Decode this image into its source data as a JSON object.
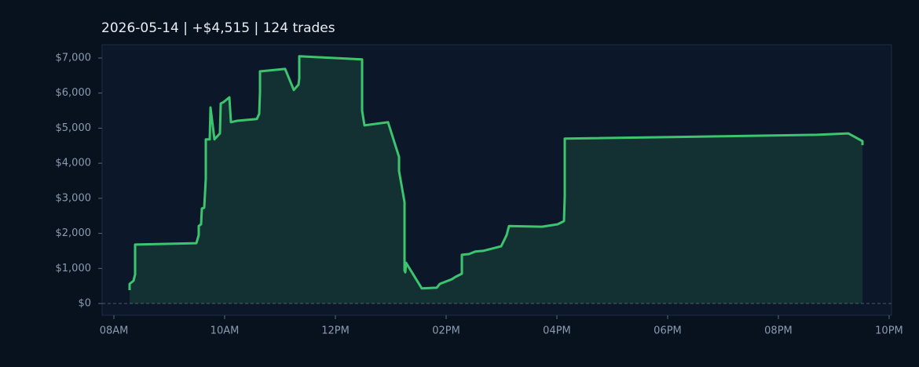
{
  "chart_data": {
    "type": "area-line",
    "title": "2026-05-14  |  +$4,515  |  124 trades",
    "color": "#3cc46e",
    "x": [
      8.284,
      8.284,
      8.355,
      8.383,
      8.383,
      9.489,
      9.532,
      9.532,
      9.574,
      9.589,
      9.631,
      9.66,
      9.66,
      9.73,
      9.745,
      9.816,
      9.915,
      9.929,
      9.986,
      10.085,
      10.113,
      10.227,
      10.582,
      10.624,
      10.638,
      10.638,
      11.092,
      11.248,
      11.333,
      11.348,
      11.348,
      12.482,
      12.482,
      12.525,
      12.95,
      13.149,
      13.149,
      13.248,
      13.248,
      13.262,
      13.277,
      13.56,
      13.83,
      13.887,
      14.1,
      14.17,
      14.284,
      14.284,
      14.411,
      14.525,
      14.667,
      14.993,
      15.092,
      15.135,
      15.73,
      16.014,
      16.128,
      16.142,
      16.142,
      20.695,
      21.262,
      21.518,
      21.518
    ],
    "values": [
      380,
      560,
      650,
      830,
      1680,
      1720,
      1950,
      2210,
      2260,
      2710,
      2730,
      3560,
      4680,
      4680,
      5590,
      4680,
      4850,
      5700,
      5750,
      5880,
      5170,
      5210,
      5260,
      5410,
      6020,
      6620,
      6690,
      6090,
      6240,
      6420,
      7050,
      6960,
      5500,
      5080,
      5170,
      4180,
      3780,
      2890,
      940,
      890,
      1160,
      430,
      450,
      560,
      690,
      760,
      850,
      1390,
      1410,
      1480,
      1500,
      1630,
      1950,
      2210,
      2190,
      2260,
      2350,
      3060,
      4700,
      4810,
      4850,
      4630,
      4515
    ],
    "xlim": [
      7.787,
      22.043
    ],
    "xticks": [
      {
        "value": 8,
        "label": "08AM"
      },
      {
        "value": 10,
        "label": "10AM"
      },
      {
        "value": 12,
        "label": "12PM"
      },
      {
        "value": 14,
        "label": "02PM"
      },
      {
        "value": 16,
        "label": "04PM"
      },
      {
        "value": 18,
        "label": "06PM"
      },
      {
        "value": 20,
        "label": "08PM"
      },
      {
        "value": 22,
        "label": "10PM"
      }
    ],
    "ylim": [
      -335,
      7380
    ],
    "yticks": [
      {
        "value": 0,
        "label": "$0"
      },
      {
        "value": 1000,
        "label": "$1,000"
      },
      {
        "value": 2000,
        "label": "$2,000"
      },
      {
        "value": 3000,
        "label": "$3,000"
      },
      {
        "value": 4000,
        "label": "$4,000"
      },
      {
        "value": 5000,
        "label": "$5,000"
      },
      {
        "value": 6000,
        "label": "$6,000"
      },
      {
        "value": 7000,
        "label": "$7,000"
      }
    ],
    "zero_line": true
  }
}
